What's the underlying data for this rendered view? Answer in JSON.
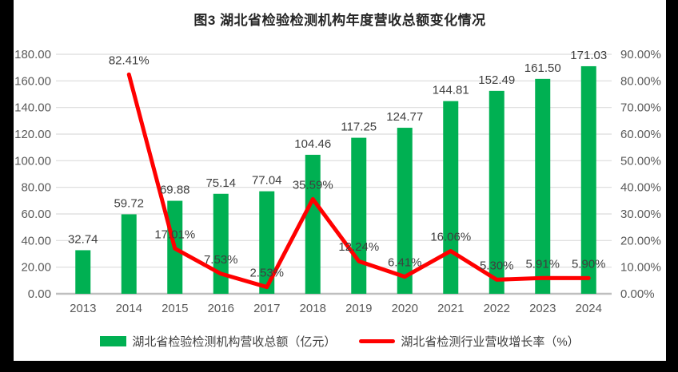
{
  "title": "图3 湖北省检验检测机构年度营收总额变化情况",
  "legend": {
    "bar_label": "湖北省检验检测机构营收总额（亿元）",
    "line_label": "湖北省检测行业营收增长率（%）"
  },
  "colors": {
    "bar": "#00B052",
    "line": "#FF0000",
    "grid": "#DCDCDC",
    "axis_line": "#BFBFBF",
    "tick_text": "#595959",
    "label_text": "#3F3F3F",
    "title_text": "#262626",
    "frame": "#000000",
    "background": "#FFFFFF"
  },
  "chart_data": {
    "type": "bar",
    "title": "图3 湖北省检验检测机构年度营收总额变化情况",
    "categories": [
      "2013",
      "2014",
      "2015",
      "2016",
      "2017",
      "2018",
      "2019",
      "2020",
      "2021",
      "2022",
      "2023",
      "2024"
    ],
    "series": [
      {
        "name": "湖北省检验检测机构营收总额（亿元）",
        "type": "bar",
        "axis": "left",
        "color": "#00B052",
        "values": [
          32.74,
          59.72,
          69.88,
          75.14,
          77.04,
          104.46,
          117.25,
          124.77,
          144.81,
          152.49,
          161.5,
          171.03
        ],
        "labels": [
          "32.74",
          "59.72",
          "69.88",
          "75.14",
          "77.04",
          "104.46",
          "117.25",
          "124.77",
          "144.81",
          "152.49",
          "161.50",
          "171.03"
        ]
      },
      {
        "name": "湖北省检测行业营收增长率（%）",
        "type": "line",
        "axis": "right",
        "color": "#FF0000",
        "values": [
          null,
          82.41,
          17.01,
          7.53,
          2.53,
          35.59,
          12.24,
          6.41,
          16.06,
          5.3,
          5.91,
          5.9
        ],
        "labels": [
          "",
          "82.41%",
          "17.01%",
          "7.53%",
          "2.53%",
          "35.59%",
          "12.24%",
          "6.41%",
          "16.06%",
          "5.30%",
          "5.91%",
          "5.90%"
        ]
      }
    ],
    "left_axis": {
      "min": 0,
      "max": 180,
      "step": 20,
      "tick_labels": [
        "0.00",
        "20.00",
        "40.00",
        "60.00",
        "80.00",
        "100.00",
        "120.00",
        "140.00",
        "160.00",
        "180.00"
      ]
    },
    "right_axis": {
      "min": 0,
      "max": 90,
      "step": 10,
      "tick_labels": [
        "0.00%",
        "10.00%",
        "20.00%",
        "30.00%",
        "40.00%",
        "50.00%",
        "60.00%",
        "70.00%",
        "80.00%",
        "90.00%"
      ]
    },
    "grid": true,
    "legend_position": "bottom"
  }
}
